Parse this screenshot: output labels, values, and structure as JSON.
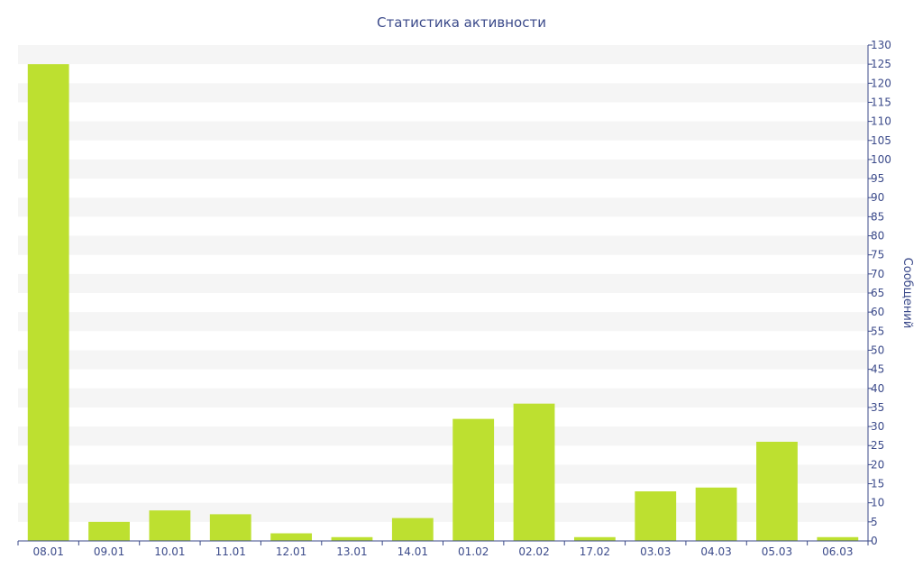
{
  "chart_data": {
    "type": "bar",
    "title": "Статистика активности",
    "xlabel": "",
    "ylabel": "Сообщений",
    "categories": [
      "08.01",
      "09.01",
      "10.01",
      "11.01",
      "12.01",
      "13.01",
      "14.01",
      "01.02",
      "02.02",
      "17.02",
      "03.03",
      "04.03",
      "05.03",
      "06.03"
    ],
    "values": [
      125,
      5,
      8,
      7,
      2,
      1,
      6,
      32,
      36,
      1,
      13,
      14,
      26,
      1
    ],
    "ylim": [
      0,
      130
    ],
    "ytick_step": 5,
    "y_axis_side": "right",
    "grid": "alternating-bands",
    "legend": "none",
    "colors": {
      "bar": "#bde030",
      "band": "#f5f5f5",
      "axis": "#3b4a8a",
      "text": "#3b4a8a"
    }
  }
}
